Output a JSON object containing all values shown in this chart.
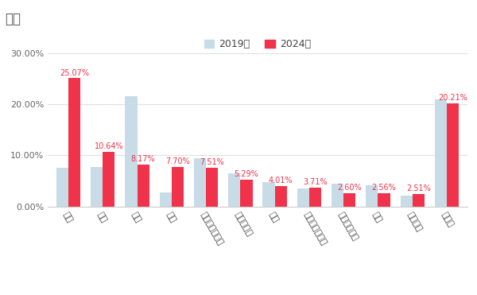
{
  "title": "国別",
  "categories": [
    "日本",
    "韓国",
    "中国",
    "台湾",
    "アメリカ合衆国",
    "フィリピン",
    "香港",
    "オーストラリア",
    "インドネシア",
    "タイ",
    "フランス",
    "その他"
  ],
  "values_2019": [
    7.5,
    7.8,
    21.5,
    2.8,
    9.5,
    6.5,
    4.8,
    3.5,
    4.5,
    4.2,
    2.2,
    21.0
  ],
  "values_2024": [
    25.07,
    10.64,
    8.17,
    7.7,
    7.51,
    5.29,
    4.01,
    3.71,
    2.6,
    2.56,
    2.51,
    20.21
  ],
  "labels_2024": [
    "25.07%",
    "10.64%",
    "8.17%",
    "7.70%",
    "7.51%",
    "5.29%",
    "4.01%",
    "3.71%",
    "2.60%",
    "2.56%",
    "2.51%",
    "20.21%"
  ],
  "color_2019": "#c8dce8",
  "color_2024": "#f0334a",
  "legend_2019": "2019年",
  "legend_2024": "2024年",
  "ylim": [
    0,
    30
  ],
  "yticks": [
    0,
    10,
    20,
    30
  ],
  "ytick_labels": [
    "0.00%",
    "10.00%",
    "20.00%",
    "30.00%"
  ],
  "background_color": "#ffffff",
  "title_fontsize": 12,
  "label_fontsize": 7,
  "tick_fontsize": 8,
  "legend_fontsize": 9,
  "bar_width": 0.35
}
